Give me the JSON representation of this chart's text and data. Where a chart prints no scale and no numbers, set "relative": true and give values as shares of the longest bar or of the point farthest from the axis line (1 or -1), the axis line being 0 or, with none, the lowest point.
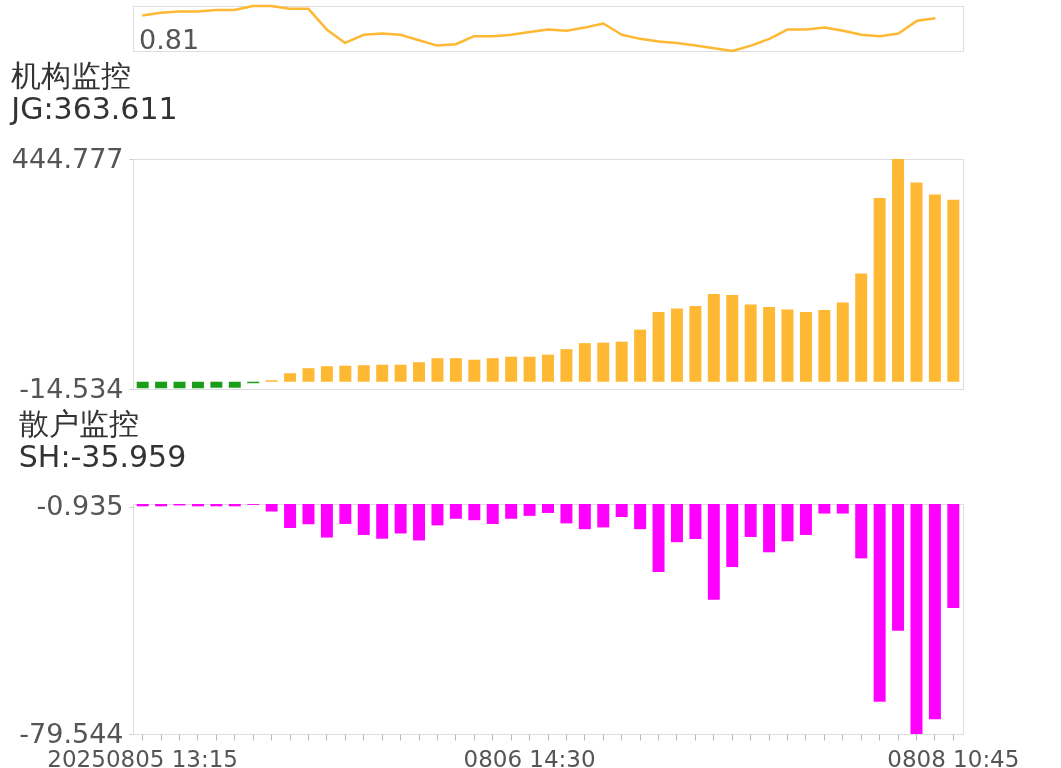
{
  "chart_data": [
    {
      "type": "line",
      "relative": true,
      "tick_labels": false,
      "color": "#ffb833",
      "annotations": [
        "0.81"
      ],
      "categories": [
        null,
        null,
        null,
        null,
        null,
        null,
        null,
        null,
        null,
        null,
        null,
        null,
        null,
        null,
        null,
        null,
        null,
        null,
        null,
        null,
        null,
        null,
        null,
        null,
        null,
        null,
        null,
        null,
        null,
        null,
        null,
        null,
        null,
        null,
        null,
        null,
        null,
        null,
        null,
        null,
        null,
        null,
        null,
        null,
        null
      ],
      "values": [
        0.79,
        0.85,
        0.88,
        0.88,
        0.91,
        0.91,
        1,
        1,
        0.94,
        0.94,
        0.48,
        0.18,
        0.36,
        0.39,
        0.36,
        0.24,
        0.12,
        0.15,
        0.33,
        0.33,
        0.36,
        0.42,
        0.48,
        0.45,
        0.52,
        0.61,
        0.36,
        0.27,
        0.21,
        0.18,
        0.12,
        0.06,
        0,
        0.12,
        0.27,
        0.48,
        0.48,
        0.52,
        0.45,
        0.36,
        0.33,
        0.39,
        0.67,
        0.73,
        null
      ]
    },
    {
      "type": "bar",
      "title": "机构监控",
      "subtitle": "JG:363.611",
      "tick_labels": "y",
      "categories": [
        null,
        null,
        null,
        null,
        null,
        null,
        null,
        null,
        null,
        null,
        null,
        null,
        null,
        null,
        null,
        null,
        null,
        null,
        null,
        null,
        null,
        null,
        null,
        null,
        null,
        null,
        null,
        null,
        null,
        null,
        null,
        null,
        null,
        null,
        null,
        null,
        null,
        null,
        null,
        null,
        null,
        null,
        null,
        null,
        null
      ],
      "ylim": [
        -14.534,
        444.777
      ],
      "yticks": [
        444.777,
        -14.534
      ],
      "values": [
        -13,
        -13,
        -13,
        -13,
        -12,
        -12,
        -3,
        3,
        17,
        27,
        31,
        32,
        33,
        34,
        34,
        39,
        47,
        47,
        44,
        47,
        50,
        50,
        54,
        65,
        77,
        78,
        80,
        104,
        139,
        146,
        151,
        175,
        173,
        154,
        149,
        144,
        139,
        143,
        158,
        216,
        367,
        444.777,
        398,
        374,
        363.611
      ],
      "colors": [
        "#1a9e1a",
        "#1a9e1a",
        "#1a9e1a",
        "#1a9e1a",
        "#1a9e1a",
        "#1a9e1a",
        "#1a9e1a",
        "#ffb833",
        "#ffb833",
        "#ffb833",
        "#ffb833",
        "#ffb833",
        "#ffb833",
        "#ffb833",
        "#ffb833",
        "#ffb833",
        "#ffb833",
        "#ffb833",
        "#ffb833",
        "#ffb833",
        "#ffb833",
        "#ffb833",
        "#ffb833",
        "#ffb833",
        "#ffb833",
        "#ffb833",
        "#ffb833",
        "#ffb833",
        "#ffb833",
        "#ffb833",
        "#ffb833",
        "#ffb833",
        "#ffb833",
        "#ffb833",
        "#ffb833",
        "#ffb833",
        "#ffb833",
        "#ffb833",
        "#ffb833",
        "#ffb833",
        "#ffb833",
        "#ffb833",
        "#ffb833",
        "#ffb833",
        "#ffb833"
      ]
    },
    {
      "type": "bar",
      "title": "散户监控",
      "subtitle": "SH:-35.959",
      "color": "#ff00ff",
      "categories": [
        "20250805 13:15",
        null,
        null,
        null,
        null,
        null,
        null,
        null,
        null,
        null,
        null,
        null,
        null,
        null,
        null,
        null,
        null,
        null,
        null,
        null,
        null,
        "0806 14:30",
        null,
        null,
        null,
        null,
        null,
        null,
        null,
        null,
        null,
        null,
        null,
        null,
        null,
        null,
        null,
        null,
        null,
        null,
        null,
        null,
        null,
        null,
        "0808 10:45"
      ],
      "ylim": [
        -79.544,
        0
      ],
      "yticks": [
        -0.935,
        -79.544
      ],
      "values": [
        -0.8,
        -0.8,
        -0.5,
        -0.8,
        -0.8,
        -0.8,
        -0.3,
        -2.6,
        -8.3,
        -7.0,
        -11.6,
        -6.9,
        -10.7,
        -12.0,
        -10.2,
        -12.6,
        -7.4,
        -5.1,
        -5.6,
        -6.9,
        -5.1,
        -4.1,
        -3.1,
        -6.7,
        -8.7,
        -8.1,
        -4.5,
        -8.7,
        -23.5,
        -13.2,
        -12.1,
        -33.1,
        -21.8,
        -11.4,
        -16.7,
        -12.9,
        -10.7,
        -3.3,
        -3.3,
        -18.8,
        -68.4,
        -43.8,
        -79.544,
        -74.4,
        -35.959
      ]
    }
  ]
}
